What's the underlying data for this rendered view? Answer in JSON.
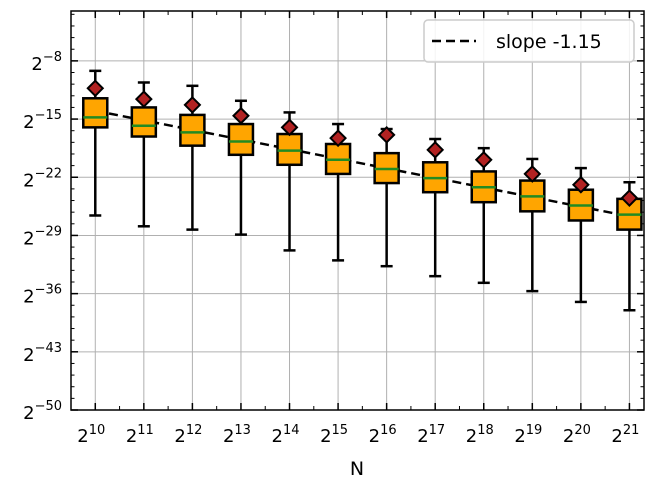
{
  "chart_data": {
    "type": "box",
    "xlabel": "N",
    "ylabel": "",
    "x_scale": "log2",
    "y_scale": "log2",
    "grid": true,
    "legend_placement": "top-right",
    "x_ticks": [
      {
        "base": "2",
        "exp": "10"
      },
      {
        "base": "2",
        "exp": "11"
      },
      {
        "base": "2",
        "exp": "12"
      },
      {
        "base": "2",
        "exp": "13"
      },
      {
        "base": "2",
        "exp": "14"
      },
      {
        "base": "2",
        "exp": "15"
      },
      {
        "base": "2",
        "exp": "16"
      },
      {
        "base": "2",
        "exp": "17"
      },
      {
        "base": "2",
        "exp": "18"
      },
      {
        "base": "2",
        "exp": "19"
      },
      {
        "base": "2",
        "exp": "20"
      },
      {
        "base": "2",
        "exp": "21"
      }
    ],
    "y_ticks": [
      {
        "base": "2",
        "exp": "−8",
        "value": -8
      },
      {
        "base": "2",
        "exp": "−15",
        "value": -15
      },
      {
        "base": "2",
        "exp": "−22",
        "value": -22
      },
      {
        "base": "2",
        "exp": "−29",
        "value": -29
      },
      {
        "base": "2",
        "exp": "−36",
        "value": -36
      },
      {
        "base": "2",
        "exp": "−43",
        "value": -43
      },
      {
        "base": "2",
        "exp": "−50",
        "value": -50
      }
    ],
    "ylim_log2": [
      -50,
      -2
    ],
    "xlim_log2": [
      9.5,
      21.3
    ],
    "boxes": [
      {
        "log2_N": 10,
        "whisker_low": -26.6,
        "q1": -16.0,
        "median": -14.8,
        "q3": -12.5,
        "whisker_high": -9.2,
        "mean": -11.3
      },
      {
        "log2_N": 11,
        "whisker_low": -27.9,
        "q1": -17.1,
        "median": -15.8,
        "q3": -13.6,
        "whisker_high": -10.6,
        "mean": -12.6
      },
      {
        "log2_N": 12,
        "whisker_low": -28.3,
        "q1": -18.2,
        "median": -16.6,
        "q3": -14.5,
        "whisker_high": -11.0,
        "mean": -13.3
      },
      {
        "log2_N": 13,
        "whisker_low": -28.9,
        "q1": -19.3,
        "median": -17.7,
        "q3": -15.6,
        "whisker_high": -12.8,
        "mean": -14.6
      },
      {
        "log2_N": 14,
        "whisker_low": -30.8,
        "q1": -20.5,
        "median": -18.8,
        "q3": -16.8,
        "whisker_high": -14.2,
        "mean": -16.0
      },
      {
        "log2_N": 15,
        "whisker_low": -32.0,
        "q1": -21.6,
        "median": -19.9,
        "q3": -18.0,
        "whisker_high": -15.6,
        "mean": -17.3
      },
      {
        "log2_N": 16,
        "whisker_low": -32.7,
        "q1": -22.7,
        "median": -21.0,
        "q3": -19.1,
        "whisker_high": -16.2,
        "mean": -16.9
      },
      {
        "log2_N": 17,
        "whisker_low": -33.9,
        "q1": -23.8,
        "median": -22.1,
        "q3": -20.2,
        "whisker_high": -17.4,
        "mean": -18.7
      },
      {
        "log2_N": 18,
        "whisker_low": -34.7,
        "q1": -25.0,
        "median": -23.2,
        "q3": -21.3,
        "whisker_high": -18.5,
        "mean": -19.9
      },
      {
        "log2_N": 19,
        "whisker_low": -35.7,
        "q1": -26.1,
        "median": -24.3,
        "q3": -22.4,
        "whisker_high": -19.8,
        "mean": -21.6
      },
      {
        "log2_N": 20,
        "whisker_low": -37.0,
        "q1": -27.2,
        "median": -25.4,
        "q3": -23.5,
        "whisker_high": -20.9,
        "mean": -22.9
      },
      {
        "log2_N": 21,
        "whisker_low": -38.0,
        "q1": -28.3,
        "median": -26.5,
        "q3": -24.6,
        "whisker_high": -22.6,
        "mean": -24.5
      }
    ],
    "fit_line": {
      "name": "slope -1.15",
      "slope": -1.15,
      "x_start": 10,
      "y_start": -14.0,
      "x_end": 21,
      "y_end": -26.7
    },
    "colors": {
      "box_fill": "#FFA500",
      "box_edge": "#000000",
      "median": "#228B22",
      "mean_marker": "#B22222",
      "fit_line": "#000000",
      "grid": "#B0B0B0"
    }
  }
}
